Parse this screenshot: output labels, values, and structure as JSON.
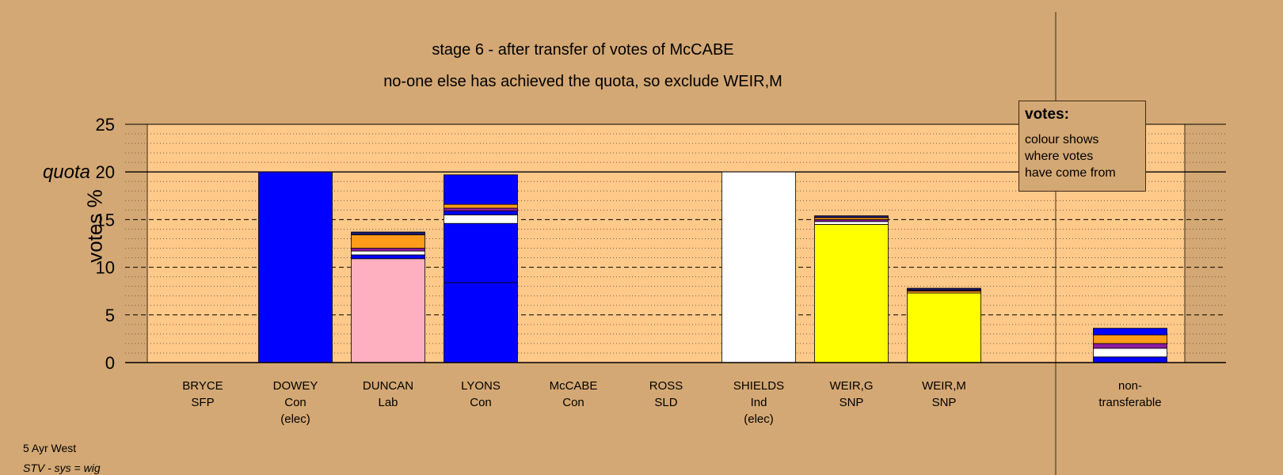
{
  "titles": {
    "line1": "stage 6 - after transfer of votes of McCABE",
    "line2": "no-one else has achieved the quota, so exclude WEIR,M"
  },
  "legend": {
    "title": "votes:",
    "text": "colour shows\nwhere votes\nhave come from"
  },
  "footer": {
    "ward": "5 Ayr West",
    "system": "STV - sys = wig"
  },
  "colors": {
    "background": "#d4a874",
    "plot": "#ffc98a",
    "Con": "#0000ff",
    "Lab": "#ffb0c0",
    "SNP": "#ffff00",
    "Ind": "#ffffff",
    "orange": "#ff9c1a",
    "purple": "#8c1aa0",
    "navy": "#1a1a6e"
  },
  "chart_data": {
    "type": "bar",
    "ylabel": "votes %",
    "ylim": [
      0,
      25
    ],
    "yticks": [
      0,
      5,
      10,
      15,
      20,
      25
    ],
    "quota": {
      "label": "quota",
      "value": 20
    },
    "grid": true,
    "legend_position": "top-right",
    "candidates": [
      {
        "name": "BRYCE",
        "party": "SFP",
        "note": "",
        "segments": []
      },
      {
        "name": "DOWEY",
        "party": "Con",
        "note": "(elec)",
        "segments": [
          {
            "color": "#0000ff",
            "value": 20.0
          }
        ]
      },
      {
        "name": "DUNCAN",
        "party": "Lab",
        "note": "",
        "segments": [
          {
            "color": "#ffb0c0",
            "value": 10.9
          },
          {
            "color": "#0000ff",
            "value": 0.4
          },
          {
            "color": "#ffffff",
            "value": 0.4
          },
          {
            "color": "#8c1aa0",
            "value": 0.3
          },
          {
            "color": "#ff9c1a",
            "value": 1.4
          },
          {
            "color": "#1a1a6e",
            "value": 0.3
          }
        ]
      },
      {
        "name": "LYONS",
        "party": "Con",
        "note": "",
        "segments": [
          {
            "color": "#0000ff",
            "value": 8.4
          },
          {
            "color": "#0000ff",
            "value": 6.2
          },
          {
            "color": "#ffffff",
            "value": 0.9
          },
          {
            "color": "#0000ff",
            "value": 0.4
          },
          {
            "color": "#8c1aa0",
            "value": 0.3
          },
          {
            "color": "#ff9c1a",
            "value": 0.4
          },
          {
            "color": "#0000ff",
            "value": 3.1
          }
        ]
      },
      {
        "name": "McCABE",
        "party": "Con",
        "note": "",
        "segments": []
      },
      {
        "name": "ROSS",
        "party": "SLD",
        "note": "",
        "segments": []
      },
      {
        "name": "SHIELDS",
        "party": "Ind",
        "note": "(elec)",
        "segments": [
          {
            "color": "#ffffff",
            "value": 20.0
          }
        ]
      },
      {
        "name": "WEIR,G",
        "party": "SNP",
        "note": "",
        "segments": [
          {
            "color": "#ffff00",
            "value": 14.5
          },
          {
            "color": "#ffffff",
            "value": 0.3
          },
          {
            "color": "#8c1aa0",
            "value": 0.2
          },
          {
            "color": "#ff9c1a",
            "value": 0.2
          },
          {
            "color": "#1a1a6e",
            "value": 0.2
          }
        ]
      },
      {
        "name": "WEIR,M",
        "party": "SNP",
        "note": "",
        "segments": [
          {
            "color": "#ffff00",
            "value": 7.3
          },
          {
            "color": "#ff9c1a",
            "value": 0.2
          },
          {
            "color": "#8c1aa0",
            "value": 0.1
          },
          {
            "color": "#1a1a6e",
            "value": 0.2
          }
        ]
      }
    ],
    "nontransferable": {
      "label": "non-\ntransferable",
      "segments": [
        {
          "color": "#0000ff",
          "value": 0.6
        },
        {
          "color": "#ffffff",
          "value": 0.9
        },
        {
          "color": "#8c1aa0",
          "value": 0.5
        },
        {
          "color": "#ff9c1a",
          "value": 0.9
        },
        {
          "color": "#0000ff",
          "value": 0.7
        }
      ]
    }
  }
}
